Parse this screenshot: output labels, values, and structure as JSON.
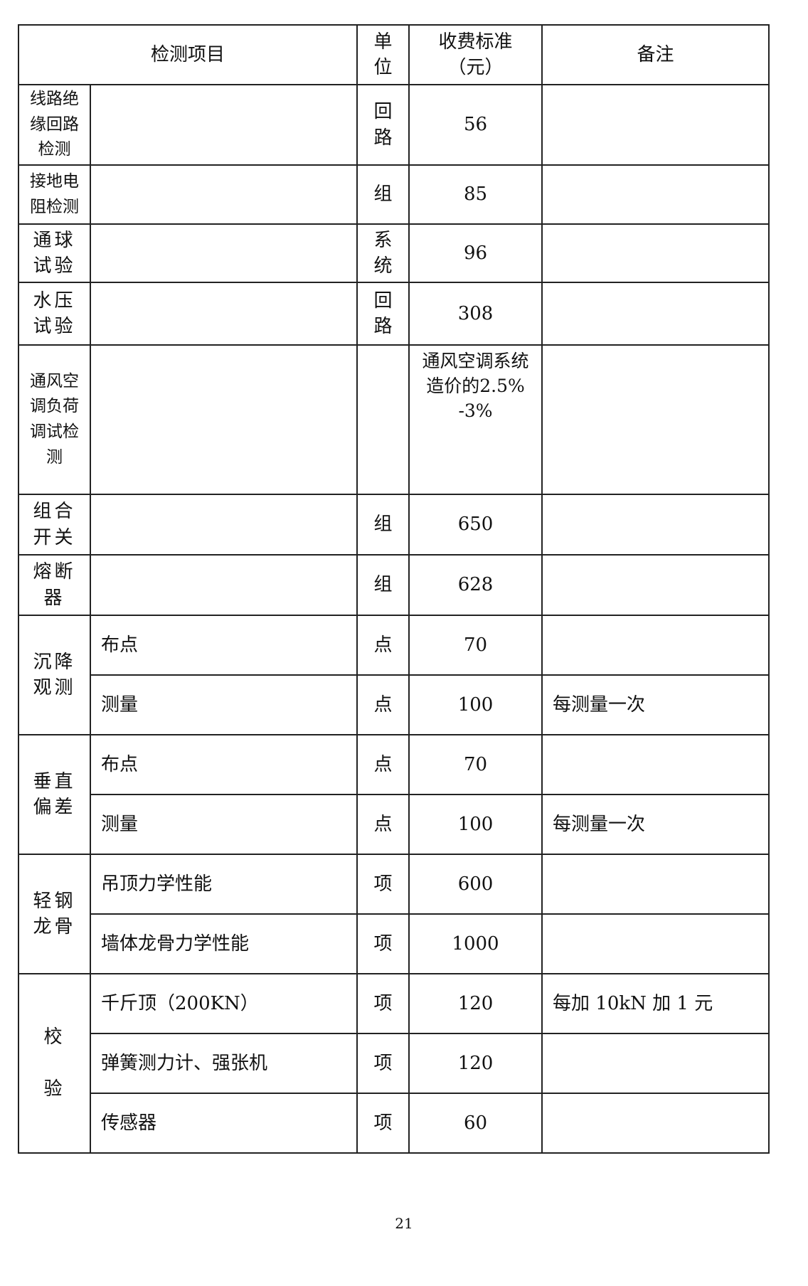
{
  "headers": {
    "item": "检测项目",
    "unit": "单\n位",
    "fee": "收费标准\n（元）",
    "note": "备注"
  },
  "rows": [
    {
      "cat": "线路绝\n缘回路\n检测",
      "sub": "",
      "unit": "回\n路",
      "fee": "56",
      "note": ""
    },
    {
      "cat": "接地电\n阻检测",
      "sub": "",
      "unit": "组",
      "fee": "85",
      "note": ""
    },
    {
      "cat": "通球\n试验",
      "sub": "",
      "unit": "系\n统",
      "fee": "96",
      "note": ""
    },
    {
      "cat": "水压\n试验",
      "sub": "",
      "unit": "回\n路",
      "fee": "308",
      "note": ""
    },
    {
      "cat": "通风空\n调负荷\n调试检\n测",
      "sub": "",
      "unit": "",
      "fee": "通风空调系统\n造价的2.5%\n-3%",
      "note": ""
    },
    {
      "cat": "组合\n开关",
      "sub": "",
      "unit": "组",
      "fee": "650",
      "note": ""
    },
    {
      "cat": "熔断\n器",
      "sub": "",
      "unit": "组",
      "fee": "628",
      "note": ""
    }
  ],
  "groups": [
    {
      "cat": "沉降\n观测",
      "items": [
        {
          "sub": "布点",
          "unit": "点",
          "fee": "70",
          "note": ""
        },
        {
          "sub": "测量",
          "unit": "点",
          "fee": "100",
          "note": "每测量一次"
        }
      ]
    },
    {
      "cat": "垂直\n偏差",
      "items": [
        {
          "sub": "布点",
          "unit": "点",
          "fee": "70",
          "note": ""
        },
        {
          "sub": "测量",
          "unit": "点",
          "fee": "100",
          "note": "每测量一次"
        }
      ]
    },
    {
      "cat": "轻钢\n龙骨",
      "items": [
        {
          "sub": "吊顶力学性能",
          "unit": "项",
          "fee": "600",
          "note": ""
        },
        {
          "sub": "墙体龙骨力学性能",
          "unit": "项",
          "fee": "1000",
          "note": ""
        }
      ]
    },
    {
      "cat": "校\n\n验",
      "items": [
        {
          "sub": "千斤顶（200KN）",
          "unit": "项",
          "fee": "120",
          "note": "每加 10kN 加 1 元"
        },
        {
          "sub": "弹簧测力计、强张机",
          "unit": "项",
          "fee": "120",
          "note": ""
        },
        {
          "sub": "传感器",
          "unit": "项",
          "fee": "60",
          "note": ""
        }
      ]
    }
  ],
  "page_number": "21"
}
